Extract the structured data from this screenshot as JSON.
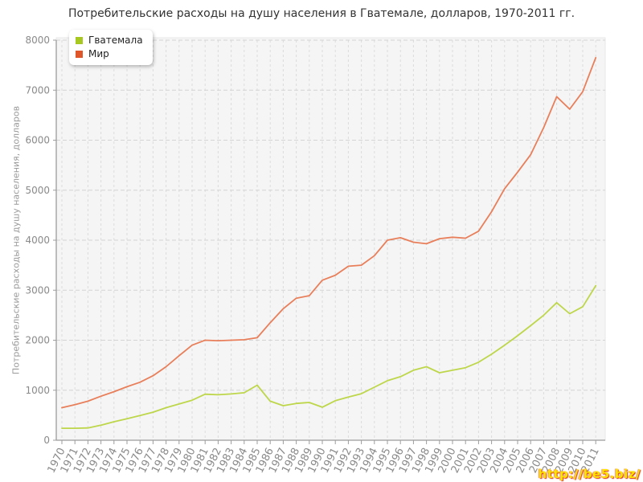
{
  "page": {
    "title": "Потребительские расходы на душу населения в Гватемале, долларов, 1970-2011 гг."
  },
  "watermark": {
    "url_text": "http://be5.biz/"
  },
  "chart_data": {
    "type": "line",
    "title": "Потребительские расходы на душу населения в Гватемале, долларов, 1970-2011 гг.",
    "xlabel": "",
    "ylabel": "Потребительские расходы на душу населения, долларов",
    "ylim": [
      0,
      8000
    ],
    "ytick_step": 1000,
    "y_tick_labels": [
      "0",
      "1000",
      "2000",
      "3000",
      "4000",
      "5000",
      "6000",
      "7000",
      "8000"
    ],
    "grid": true,
    "legend_position": "top-left",
    "categories": [
      1970,
      1971,
      1972,
      1973,
      1974,
      1975,
      1976,
      1977,
      1978,
      1979,
      1980,
      1981,
      1982,
      1983,
      1984,
      1985,
      1986,
      1987,
      1988,
      1989,
      1990,
      1991,
      1992,
      1993,
      1994,
      1995,
      1996,
      1997,
      1998,
      1999,
      2000,
      2001,
      2002,
      2003,
      2004,
      2005,
      2006,
      2007,
      2008,
      2009,
      2010,
      2011
    ],
    "series": [
      {
        "name": "Гватемала",
        "slug": "guatemala",
        "line_color": "#bdd64a",
        "marker_color": "#a6c821",
        "values": [
          240,
          240,
          245,
          300,
          370,
          430,
          495,
          560,
          650,
          725,
          800,
          920,
          910,
          925,
          950,
          1100,
          780,
          690,
          735,
          755,
          660,
          790,
          865,
          930,
          1060,
          1190,
          1270,
          1400,
          1470,
          1350,
          1400,
          1450,
          1560,
          1720,
          1900,
          2090,
          2290,
          2500,
          2750,
          2530,
          2670,
          3090
        ]
      },
      {
        "name": "Мир",
        "slug": "world",
        "line_color": "#e87f5a",
        "marker_color": "#e0562b",
        "values": [
          650,
          710,
          780,
          880,
          970,
          1070,
          1160,
          1290,
          1470,
          1690,
          1900,
          2000,
          1990,
          2000,
          2010,
          2050,
          2350,
          2630,
          2840,
          2890,
          3200,
          3300,
          3480,
          3500,
          3690,
          4000,
          4050,
          3960,
          3930,
          4030,
          4060,
          4040,
          4180,
          4570,
          5030,
          5360,
          5710,
          6250,
          6870,
          6620,
          6970,
          7650
        ]
      }
    ]
  },
  "colors": {
    "plot_background": "#f5f5f5",
    "plot_border": "#e7e7e7",
    "grid_vertical": "#dcdcdc",
    "grid_horizontal": "#d4d4d4",
    "axis": "#9c9c9c",
    "tick_text": "#8a8a8a"
  }
}
